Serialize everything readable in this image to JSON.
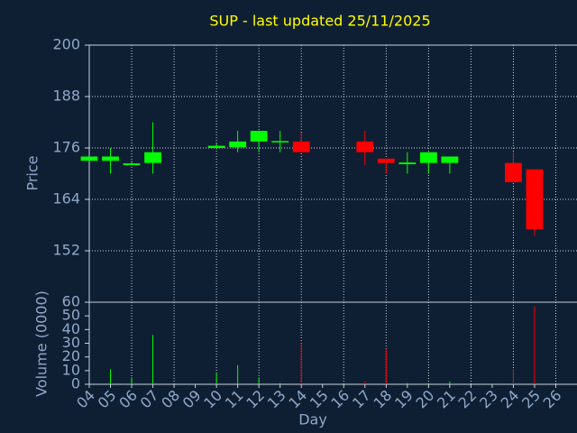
{
  "chart_data": [
    {
      "type": "candlestick",
      "title": "SUP - last updated 25/11/2025",
      "ylabel": "Price",
      "x": [
        4,
        5,
        6,
        7,
        10,
        11,
        12,
        13,
        14,
        17,
        18,
        19,
        20,
        21,
        24,
        25
      ],
      "open": [
        173,
        173,
        172,
        172.5,
        176,
        176.2,
        177.5,
        177.3,
        177.5,
        177.5,
        173.5,
        172.2,
        172.5,
        172.5,
        172.5,
        171
      ],
      "high": [
        174,
        176,
        173,
        182,
        177,
        180,
        180,
        180,
        179.6,
        180,
        173.5,
        175,
        175,
        174,
        175,
        171
      ],
      "low": [
        173,
        170,
        172,
        170,
        175.7,
        175,
        175,
        175,
        175,
        172,
        170,
        170,
        170,
        170,
        168,
        155.5
      ],
      "close": [
        174,
        174,
        172.4,
        175,
        176.5,
        177.5,
        180,
        177.6,
        175,
        175,
        172.5,
        172.6,
        175,
        174,
        168,
        157
      ],
      "up_color": "#00ff00",
      "down_color": "#ff0000",
      "xlim": [
        4,
        27
      ],
      "xgrid": [
        4,
        6,
        8,
        10,
        12,
        14,
        16,
        18,
        20,
        22,
        24,
        26
      ],
      "ylim": [
        140,
        200
      ],
      "yticks": [
        152,
        164,
        176,
        188,
        200
      ],
      "grid": true
    },
    {
      "type": "bar",
      "ylabel": "Volume (0000)",
      "xlabel": "Day",
      "x": [
        4,
        5,
        6,
        7,
        10,
        11,
        12,
        13,
        14,
        17,
        18,
        19,
        20,
        21,
        24,
        25
      ],
      "values": [
        0,
        11,
        5,
        36,
        8,
        14,
        5,
        1,
        30,
        2,
        26,
        1,
        1,
        2,
        11,
        57
      ],
      "colors": [
        "#00ff00",
        "#00ff00",
        "#00ff00",
        "#00ff00",
        "#00ff00",
        "#00ff00",
        "#00ff00",
        "#00ff00",
        "#ff0000",
        "#ff0000",
        "#ff0000",
        "#00ff00",
        "#00ff00",
        "#00ff00",
        "#ff0000",
        "#ff0000"
      ],
      "xlim": [
        4,
        27
      ],
      "xticks": [
        {
          "value": 4,
          "label": "04"
        },
        {
          "value": 5,
          "label": "05"
        },
        {
          "value": 6,
          "label": "06"
        },
        {
          "value": 7,
          "label": "07"
        },
        {
          "value": 8,
          "label": "08"
        },
        {
          "value": 9,
          "label": "09"
        },
        {
          "value": 10,
          "label": "10"
        },
        {
          "value": 11,
          "label": "11"
        },
        {
          "value": 12,
          "label": "12"
        },
        {
          "value": 13,
          "label": "13"
        },
        {
          "value": 14,
          "label": "14"
        },
        {
          "value": 15,
          "label": "15"
        },
        {
          "value": 16,
          "label": "16"
        },
        {
          "value": 17,
          "label": "17"
        },
        {
          "value": 18,
          "label": "18"
        },
        {
          "value": 19,
          "label": "19"
        },
        {
          "value": 20,
          "label": "20"
        },
        {
          "value": 21,
          "label": "21"
        },
        {
          "value": 22,
          "label": "22"
        },
        {
          "value": 23,
          "label": "23"
        },
        {
          "value": 24,
          "label": "24"
        },
        {
          "value": 25,
          "label": "25"
        },
        {
          "value": 26,
          "label": "26"
        }
      ],
      "ylim": [
        0,
        60
      ],
      "yticks": [
        0,
        10,
        20,
        30,
        40,
        50,
        60
      ]
    }
  ]
}
